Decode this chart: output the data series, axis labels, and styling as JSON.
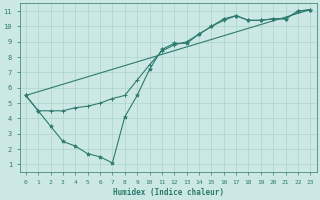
{
  "xlabel": "Humidex (Indice chaleur)",
  "bg_color": "#cce8e4",
  "grid_color": "#aad4cc",
  "line_color": "#2d7a6e",
  "xlim": [
    -0.5,
    23.5
  ],
  "ylim": [
    0.5,
    11.5
  ],
  "xticks": [
    0,
    1,
    2,
    3,
    4,
    5,
    6,
    7,
    8,
    9,
    10,
    11,
    12,
    13,
    14,
    15,
    16,
    17,
    18,
    19,
    20,
    21,
    22,
    23
  ],
  "yticks": [
    1,
    2,
    3,
    4,
    5,
    6,
    7,
    8,
    9,
    10,
    11
  ],
  "line1_x": [
    0,
    1,
    2,
    3,
    4,
    5,
    6,
    7,
    8,
    9,
    10,
    11,
    12,
    13,
    14,
    15,
    16,
    17,
    18,
    19,
    20,
    21,
    22,
    23
  ],
  "line1_y": [
    5.5,
    4.5,
    3.5,
    2.5,
    2.2,
    1.7,
    1.5,
    1.1,
    4.1,
    5.5,
    7.2,
    8.5,
    8.9,
    8.9,
    9.5,
    10.0,
    10.5,
    10.7,
    10.4,
    10.4,
    10.5,
    10.5,
    11.0,
    11.1
  ],
  "line2_x": [
    0,
    1,
    2,
    3,
    4,
    5,
    6,
    7,
    8,
    9,
    10,
    11,
    12,
    13,
    14,
    15,
    16,
    17,
    18,
    19,
    20,
    21,
    22,
    23
  ],
  "line2_y": [
    5.5,
    4.5,
    4.5,
    4.5,
    4.7,
    4.8,
    5.0,
    5.3,
    5.5,
    6.5,
    7.5,
    8.4,
    8.8,
    9.0,
    9.5,
    10.0,
    10.4,
    10.7,
    10.4,
    10.4,
    10.5,
    10.5,
    11.0,
    11.1
  ],
  "line3_x": [
    0,
    23
  ],
  "line3_y": [
    5.5,
    11.1
  ]
}
